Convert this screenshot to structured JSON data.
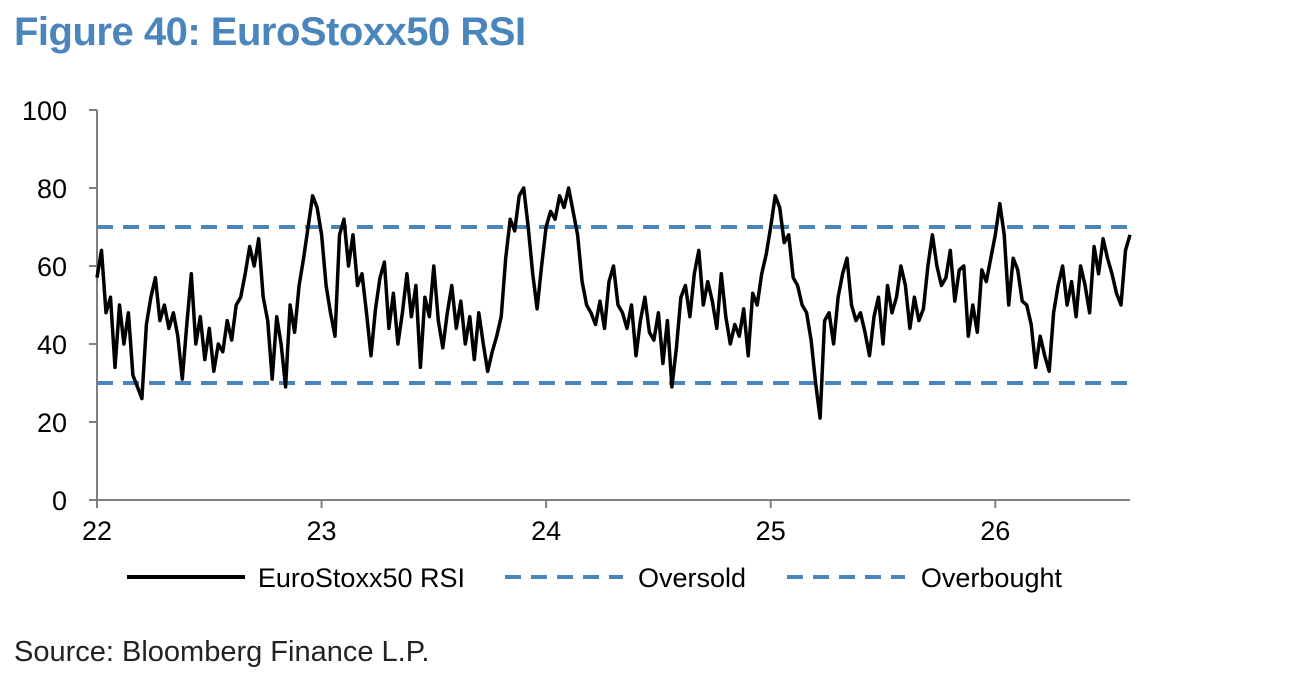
{
  "figure": {
    "title": "Figure 40: EuroStoxx50 RSI",
    "source": "Source: Bloomberg Finance L.P."
  },
  "colors": {
    "title": "#4a86bb",
    "rsi_line": "#000000",
    "threshold_line": "#4a86bb",
    "axis": "#808080"
  },
  "chart_data": {
    "type": "line",
    "title": "",
    "xlabel": "",
    "ylabel": "",
    "xlim": [
      22,
      26.6
    ],
    "ylim": [
      0,
      100
    ],
    "x_ticks": [
      "22",
      "23",
      "24",
      "25",
      "26"
    ],
    "y_ticks": [
      "0",
      "20",
      "40",
      "60",
      "80",
      "100"
    ],
    "grid": false,
    "legend_position": "bottom",
    "series": [
      {
        "name": "EuroStoxx50 RSI",
        "style": "solid",
        "color": "#000000",
        "x": [
          22.0,
          22.02,
          22.04,
          22.06,
          22.08,
          22.1,
          22.12,
          22.14,
          22.16,
          22.18,
          22.2,
          22.22,
          22.24,
          22.26,
          22.28,
          22.3,
          22.32,
          22.34,
          22.36,
          22.38,
          22.4,
          22.42,
          22.44,
          22.46,
          22.48,
          22.5,
          22.52,
          22.54,
          22.56,
          22.58,
          22.6,
          22.62,
          22.64,
          22.66,
          22.68,
          22.7,
          22.72,
          22.74,
          22.76,
          22.78,
          22.8,
          22.82,
          22.84,
          22.86,
          22.88,
          22.9,
          22.92,
          22.94,
          22.96,
          22.98,
          23.0,
          23.02,
          23.04,
          23.06,
          23.08,
          23.1,
          23.12,
          23.14,
          23.16,
          23.18,
          23.2,
          23.22,
          23.24,
          23.26,
          23.28,
          23.3,
          23.32,
          23.34,
          23.36,
          23.38,
          23.4,
          23.42,
          23.44,
          23.46,
          23.48,
          23.5,
          23.52,
          23.54,
          23.56,
          23.58,
          23.6,
          23.62,
          23.64,
          23.66,
          23.68,
          23.7,
          23.72,
          23.74,
          23.76,
          23.78,
          23.8,
          23.82,
          23.84,
          23.86,
          23.88,
          23.9,
          23.92,
          23.94,
          23.96,
          23.98,
          24.0,
          24.02,
          24.04,
          24.06,
          24.08,
          24.1,
          24.12,
          24.14,
          24.16,
          24.18,
          24.2,
          24.22,
          24.24,
          24.26,
          24.28,
          24.3,
          24.32,
          24.34,
          24.36,
          24.38,
          24.4,
          24.42,
          24.44,
          24.46,
          24.48,
          24.5,
          24.52,
          24.54,
          24.56,
          24.58,
          24.6,
          24.62,
          24.64,
          24.66,
          24.68,
          24.7,
          24.72,
          24.74,
          24.76,
          24.78,
          24.8,
          24.82,
          24.84,
          24.86,
          24.88,
          24.9,
          24.92,
          24.94,
          24.96,
          24.98,
          25.0,
          25.02,
          25.04,
          25.06,
          25.08,
          25.1,
          25.12,
          25.14,
          25.16,
          25.18,
          25.2,
          25.22,
          25.24,
          25.26,
          25.28,
          25.3,
          25.32,
          25.34,
          25.36,
          25.38,
          25.4,
          25.42,
          25.44,
          25.46,
          25.48,
          25.5,
          25.52,
          25.54,
          25.56,
          25.58,
          25.6,
          25.62,
          25.64,
          25.66,
          25.68,
          25.7,
          25.72,
          25.74,
          25.76,
          25.78,
          25.8,
          25.82,
          25.84,
          25.86,
          25.88,
          25.9,
          25.92,
          25.94,
          25.96,
          25.98,
          26.0,
          26.02,
          26.04,
          26.06,
          26.08,
          26.1,
          26.12,
          26.14,
          26.16,
          26.18,
          26.2,
          26.22,
          26.24,
          26.26,
          26.28,
          26.3,
          26.32,
          26.34,
          26.36,
          26.38,
          26.4,
          26.42,
          26.44,
          26.46,
          26.48,
          26.5,
          26.52,
          26.54,
          26.56,
          26.58,
          26.6
        ],
        "values": [
          57,
          64,
          48,
          52,
          34,
          50,
          40,
          48,
          32,
          29,
          26,
          45,
          52,
          57,
          46,
          50,
          44,
          48,
          42,
          31,
          45,
          58,
          40,
          47,
          36,
          44,
          33,
          40,
          38,
          46,
          41,
          50,
          52,
          58,
          65,
          60,
          67,
          52,
          46,
          31,
          47,
          40,
          29,
          50,
          43,
          55,
          62,
          70,
          78,
          75,
          68,
          55,
          48,
          42,
          68,
          72,
          60,
          68,
          55,
          58,
          48,
          37,
          49,
          57,
          61,
          44,
          53,
          40,
          48,
          58,
          47,
          55,
          34,
          52,
          47,
          60,
          46,
          39,
          48,
          55,
          44,
          51,
          40,
          47,
          36,
          48,
          40,
          33,
          38,
          42,
          47,
          62,
          72,
          69,
          78,
          80,
          70,
          58,
          49,
          60,
          70,
          74,
          72,
          78,
          75,
          80,
          74,
          68,
          56,
          50,
          48,
          45,
          51,
          44,
          56,
          60,
          50,
          48,
          44,
          50,
          37,
          46,
          52,
          43,
          41,
          48,
          35,
          46,
          29,
          39,
          52,
          55,
          47,
          58,
          64,
          50,
          56,
          51,
          44,
          58,
          47,
          40,
          45,
          42,
          49,
          37,
          53,
          50,
          58,
          63,
          70,
          78,
          75,
          66,
          68,
          57,
          55,
          50,
          48,
          41,
          30,
          21,
          46,
          48,
          40,
          52,
          58,
          62,
          50,
          46,
          48,
          43,
          37,
          47,
          52,
          40,
          55,
          48,
          52,
          60,
          55,
          44,
          52,
          46,
          49,
          60,
          68,
          60,
          55,
          57,
          64,
          51,
          59,
          60,
          42,
          50,
          43,
          59,
          56,
          62,
          68,
          76,
          68,
          50,
          62,
          59,
          51,
          50,
          45,
          34,
          42,
          37,
          33,
          48,
          55,
          60,
          50,
          56,
          47,
          60,
          55,
          48,
          65,
          58,
          67,
          62,
          58,
          53,
          50,
          64,
          68
        ]
      },
      {
        "name": "Oversold",
        "style": "dashed",
        "color": "#4a86bb",
        "x": [
          22,
          26.6
        ],
        "values": [
          30,
          30
        ]
      },
      {
        "name": "Overbought",
        "style": "dashed",
        "color": "#4a86bb",
        "x": [
          22,
          26.6
        ],
        "values": [
          70,
          70
        ]
      }
    ]
  }
}
